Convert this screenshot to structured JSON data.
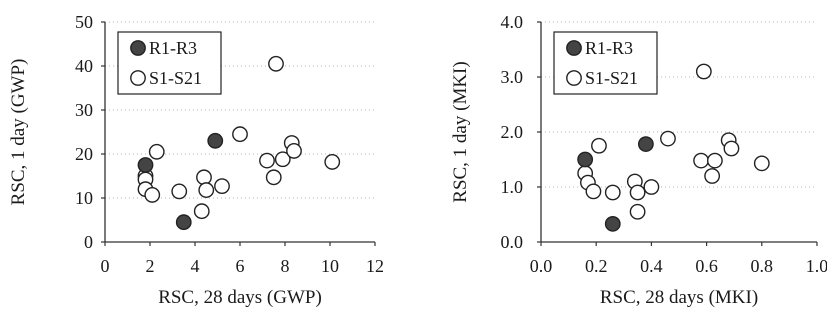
{
  "chart_data": [
    {
      "type": "scatter",
      "title": "",
      "xlabel": "RSC, 28 days (GWP)",
      "ylabel": "RSC, 1 day (GWP)",
      "xlim": [
        0,
        12
      ],
      "ylim": [
        0,
        50
      ],
      "x_ticks": [
        "0",
        "2",
        "4",
        "6",
        "8",
        "10",
        "12"
      ],
      "y_ticks": [
        "0",
        "10",
        "20",
        "30",
        "40",
        "50"
      ],
      "grid": "horizontal dotted",
      "legend_position": "top-left",
      "series": [
        {
          "name": "R1-R3",
          "marker": "filled-circle",
          "color": "#444444",
          "points": [
            [
              1.8,
              17.5
            ],
            [
              3.5,
              4.5
            ],
            [
              4.9,
              23.0
            ]
          ]
        },
        {
          "name": "S1-S21",
          "marker": "open-circle",
          "color": "#ffffff",
          "points": [
            [
              1.8,
              15.0
            ],
            [
              1.8,
              14.2
            ],
            [
              1.8,
              12.0
            ],
            [
              2.1,
              10.7
            ],
            [
              2.3,
              20.5
            ],
            [
              3.3,
              11.5
            ],
            [
              4.3,
              7.0
            ],
            [
              4.4,
              14.7
            ],
            [
              4.5,
              11.8
            ],
            [
              5.2,
              12.7
            ],
            [
              6.0,
              24.5
            ],
            [
              7.2,
              18.5
            ],
            [
              7.5,
              14.7
            ],
            [
              7.6,
              40.5
            ],
            [
              7.9,
              18.8
            ],
            [
              8.3,
              22.5
            ],
            [
              8.4,
              20.7
            ],
            [
              10.1,
              18.2
            ]
          ]
        }
      ]
    },
    {
      "type": "scatter",
      "title": "",
      "xlabel": "RSC, 28 days (MKI)",
      "ylabel": "RSC, 1 day (MKI)",
      "xlim": [
        0.0,
        1.0
      ],
      "ylim": [
        0.0,
        4.0
      ],
      "x_ticks": [
        "0.0",
        "0.2",
        "0.4",
        "0.6",
        "0.8",
        "1.0"
      ],
      "y_ticks": [
        "0.0",
        "1.0",
        "2.0",
        "3.0",
        "4.0"
      ],
      "grid": "horizontal dotted",
      "legend_position": "top-left",
      "series": [
        {
          "name": "R1-R3",
          "marker": "filled-circle",
          "color": "#444444",
          "points": [
            [
              0.16,
              1.5
            ],
            [
              0.26,
              0.33
            ],
            [
              0.38,
              1.78
            ]
          ]
        },
        {
          "name": "S1-S21",
          "marker": "open-circle",
          "color": "#ffffff",
          "points": [
            [
              0.16,
              1.25
            ],
            [
              0.17,
              1.08
            ],
            [
              0.19,
              0.92
            ],
            [
              0.21,
              1.75
            ],
            [
              0.26,
              0.9
            ],
            [
              0.34,
              1.1
            ],
            [
              0.35,
              0.55
            ],
            [
              0.35,
              0.9
            ],
            [
              0.4,
              1.0
            ],
            [
              0.46,
              1.88
            ],
            [
              0.58,
              1.48
            ],
            [
              0.59,
              3.1
            ],
            [
              0.62,
              1.2
            ],
            [
              0.63,
              1.48
            ],
            [
              0.68,
              1.85
            ],
            [
              0.69,
              1.7
            ],
            [
              0.8,
              1.43
            ]
          ]
        }
      ]
    }
  ]
}
